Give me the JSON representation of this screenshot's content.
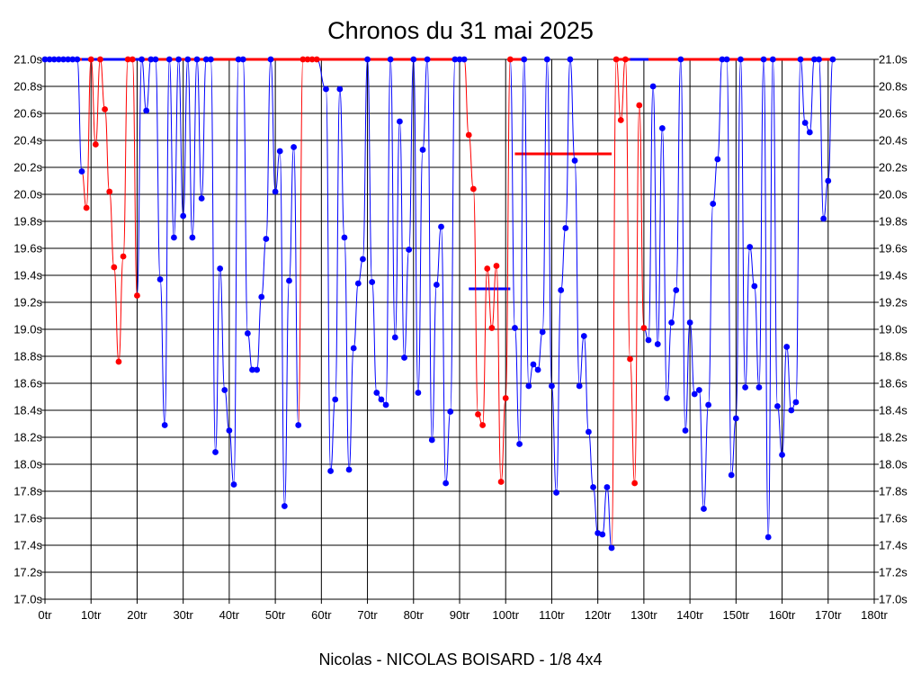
{
  "chart_data": {
    "type": "line",
    "title": "Chronos du 31 mai 2025",
    "subtitle": "Nicolas - NICOLAS BOISARD - 1/8 4x4",
    "xlim": [
      0,
      180
    ],
    "ylim": [
      17.0,
      21.0
    ],
    "x_ticks": [
      "0tr",
      "10tr",
      "20tr",
      "30tr",
      "40tr",
      "50tr",
      "60tr",
      "70tr",
      "80tr",
      "90tr",
      "100tr",
      "110tr",
      "120tr",
      "130tr",
      "140tr",
      "150tr",
      "160tr",
      "170tr",
      "180tr"
    ],
    "y_ticks": [
      "17.0s",
      "17.2s",
      "17.4s",
      "17.6s",
      "17.8s",
      "18.0s",
      "18.2s",
      "18.4s",
      "18.6s",
      "18.8s",
      "19.0s",
      "19.2s",
      "19.4s",
      "19.6s",
      "19.8s",
      "20.0s",
      "20.2s",
      "20.4s",
      "20.6s",
      "20.8s",
      "21.0s"
    ],
    "grid": true,
    "colors": {
      "blue": "#0000ff",
      "red": "#ff0000"
    },
    "series": [
      {
        "color": "blue",
        "points": [
          [
            0,
            21.0
          ],
          [
            1,
            21.0
          ],
          [
            2,
            21.0
          ],
          [
            3,
            21.0
          ],
          [
            4,
            21.0
          ],
          [
            5,
            21.0
          ],
          [
            6,
            21.0
          ],
          [
            7,
            21.0
          ],
          [
            8,
            20.17
          ]
        ]
      },
      {
        "color": "red",
        "points": [
          [
            9,
            19.9
          ],
          [
            10,
            21.0
          ],
          [
            11,
            20.37
          ],
          [
            12,
            21.0
          ],
          [
            13,
            20.63
          ],
          [
            14,
            20.02
          ],
          [
            15,
            19.46
          ],
          [
            16,
            18.76
          ],
          [
            17,
            19.54
          ],
          [
            18,
            21.0
          ],
          [
            19,
            21.0
          ],
          [
            20,
            19.25
          ]
        ]
      },
      {
        "color": "blue",
        "points": [
          [
            21,
            21.0
          ],
          [
            22,
            20.62
          ],
          [
            23,
            21.0
          ],
          [
            24,
            21.0
          ],
          [
            25,
            19.37
          ],
          [
            26,
            18.29
          ],
          [
            27,
            21.0
          ],
          [
            28,
            19.68
          ],
          [
            29,
            21.0
          ],
          [
            30,
            19.84
          ],
          [
            31,
            21.0
          ],
          [
            32,
            19.68
          ],
          [
            33,
            21.0
          ],
          [
            34,
            19.97
          ],
          [
            35,
            21.0
          ],
          [
            36,
            21.0
          ],
          [
            37,
            18.09
          ],
          [
            38,
            19.45
          ],
          [
            39,
            18.55
          ],
          [
            40,
            18.25
          ],
          [
            41,
            17.85
          ],
          [
            42,
            21.0
          ],
          [
            43,
            21.0
          ],
          [
            44,
            18.97
          ],
          [
            45,
            18.7
          ],
          [
            46,
            18.7
          ],
          [
            47,
            19.24
          ],
          [
            48,
            19.67
          ],
          [
            49,
            21.0
          ],
          [
            50,
            20.02
          ],
          [
            51,
            20.32
          ],
          [
            52,
            17.69
          ],
          [
            53,
            19.36
          ],
          [
            54,
            20.35
          ],
          [
            55,
            18.29
          ]
        ]
      },
      {
        "color": "red",
        "points": [
          [
            56,
            21.0
          ],
          [
            57,
            21.0
          ],
          [
            58,
            21.0
          ],
          [
            59,
            21.0
          ]
        ]
      },
      {
        "color": "blue",
        "points": [
          [
            61,
            20.78
          ],
          [
            62,
            17.95
          ],
          [
            63,
            18.48
          ],
          [
            64,
            20.78
          ],
          [
            65,
            19.68
          ],
          [
            66,
            17.96
          ],
          [
            67,
            18.86
          ],
          [
            68,
            19.34
          ],
          [
            69,
            19.52
          ],
          [
            70,
            21.0
          ],
          [
            71,
            19.35
          ],
          [
            72,
            18.53
          ],
          [
            73,
            18.48
          ],
          [
            74,
            18.44
          ],
          [
            75,
            21.0
          ],
          [
            76,
            18.94
          ],
          [
            77,
            20.54
          ],
          [
            78,
            18.79
          ],
          [
            79,
            19.59
          ],
          [
            80,
            21.0
          ],
          [
            81,
            18.53
          ],
          [
            82,
            20.33
          ],
          [
            83,
            21.0
          ],
          [
            84,
            18.18
          ],
          [
            85,
            19.33
          ],
          [
            86,
            19.76
          ],
          [
            87,
            17.86
          ],
          [
            88,
            18.39
          ],
          [
            89,
            21.0
          ],
          [
            90,
            21.0
          ],
          [
            91,
            21.0
          ]
        ]
      },
      {
        "color": "red",
        "points": [
          [
            92,
            20.44
          ],
          [
            93,
            20.04
          ],
          [
            94,
            18.37
          ],
          [
            95,
            18.29
          ],
          [
            96,
            19.45
          ],
          [
            97,
            19.01
          ],
          [
            98,
            19.47
          ],
          [
            99,
            17.87
          ],
          [
            100,
            18.49
          ],
          [
            101,
            21.0
          ]
        ]
      },
      {
        "color": "blue",
        "points": [
          [
            102,
            19.01
          ],
          [
            103,
            18.15
          ],
          [
            104,
            21.0
          ],
          [
            105,
            18.58
          ],
          [
            106,
            18.74
          ],
          [
            107,
            18.7
          ],
          [
            108,
            18.98
          ],
          [
            109,
            21.0
          ],
          [
            110,
            18.58
          ],
          [
            111,
            17.79
          ],
          [
            112,
            19.29
          ],
          [
            113,
            19.75
          ],
          [
            114,
            21.0
          ],
          [
            115,
            20.25
          ],
          [
            116,
            18.58
          ],
          [
            117,
            18.95
          ],
          [
            118,
            18.24
          ],
          [
            119,
            17.83
          ],
          [
            120,
            17.49
          ],
          [
            121,
            17.48
          ],
          [
            122,
            17.83
          ],
          [
            123,
            17.38
          ]
        ]
      },
      {
        "color": "red",
        "points": [
          [
            124,
            21.0
          ],
          [
            125,
            20.55
          ],
          [
            126,
            21.0
          ],
          [
            127,
            18.78
          ],
          [
            128,
            17.86
          ],
          [
            129,
            20.66
          ],
          [
            130,
            19.01
          ]
        ]
      },
      {
        "color": "blue",
        "points": [
          [
            131,
            18.92
          ],
          [
            132,
            20.8
          ],
          [
            133,
            18.89
          ],
          [
            134,
            20.49
          ],
          [
            135,
            18.49
          ],
          [
            136,
            19.05
          ],
          [
            137,
            19.29
          ],
          [
            138,
            21.0
          ],
          [
            139,
            18.25
          ],
          [
            140,
            19.05
          ],
          [
            141,
            18.52
          ],
          [
            142,
            18.55
          ],
          [
            143,
            17.67
          ],
          [
            144,
            18.44
          ],
          [
            145,
            19.93
          ],
          [
            146,
            20.26
          ],
          [
            147,
            21.0
          ],
          [
            148,
            21.0
          ],
          [
            149,
            17.92
          ],
          [
            150,
            18.34
          ],
          [
            151,
            21.0
          ],
          [
            152,
            18.57
          ],
          [
            153,
            19.61
          ],
          [
            154,
            19.32
          ],
          [
            155,
            18.57
          ],
          [
            156,
            21.0
          ],
          [
            157,
            17.46
          ],
          [
            158,
            21.0
          ],
          [
            159,
            18.43
          ],
          [
            160,
            18.07
          ],
          [
            161,
            18.87
          ],
          [
            162,
            18.4
          ],
          [
            163,
            18.46
          ],
          [
            164,
            21.0
          ],
          [
            165,
            20.53
          ],
          [
            166,
            20.46
          ],
          [
            167,
            21.0
          ],
          [
            168,
            21.0
          ],
          [
            169,
            19.82
          ],
          [
            170,
            20.1
          ],
          [
            171,
            21.0
          ]
        ]
      }
    ],
    "segments_at_21s": [
      {
        "color": "red",
        "x": [
          0,
          8
        ]
      },
      {
        "color": "blue",
        "x": [
          8,
          21
        ]
      },
      {
        "color": "red",
        "x": [
          21,
          89
        ]
      },
      {
        "color": "blue",
        "x": [
          89,
          91
        ]
      },
      {
        "color": "red",
        "x": [
          101,
          104
        ]
      },
      {
        "color": "red",
        "x": [
          124,
          127
        ]
      },
      {
        "color": "blue",
        "x": [
          127,
          131
        ]
      },
      {
        "color": "red",
        "x": [
          131,
          171
        ]
      }
    ],
    "reference_lines": [
      {
        "color": "blue",
        "x": [
          92,
          101
        ],
        "y": 19.3
      },
      {
        "color": "red",
        "x": [
          102,
          123
        ],
        "y": 20.3
      }
    ]
  }
}
